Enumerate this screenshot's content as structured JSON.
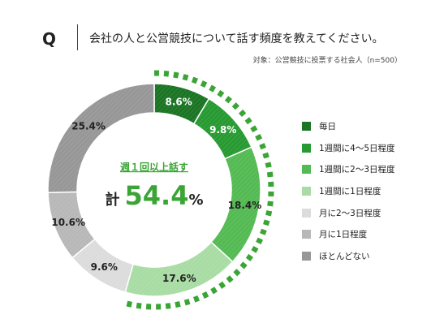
{
  "header": {
    "q_label": "Q",
    "question": "会社の人と公営競技について話す頻度を教えてください。",
    "subtitle": "対象：公営競技に投票する社会人（n=500）"
  },
  "center": {
    "label": "週１回以上話す",
    "prefix": "計",
    "value": "54.4",
    "unit": "%"
  },
  "colors": {
    "accent": "#3aa535",
    "fills": [
      "#1b7524",
      "#289a32",
      "#54ba53",
      "#a9dca4",
      "#dcdcdc",
      "#b8b8b8",
      "#979797"
    ],
    "label_text": [
      "#ffffff",
      "#ffffff",
      "#222222",
      "#222222",
      "#222222",
      "#222222",
      "#222222"
    ]
  },
  "chart_data": {
    "type": "pie",
    "donut": true,
    "categories": [
      "毎日",
      "1週間に4〜5日程度",
      "1週間に2〜3日程度",
      "1週間に1日程度",
      "月に2〜3日程度",
      "月に1日程度",
      "ほとんどない"
    ],
    "values": [
      8.6,
      9.8,
      18.4,
      17.6,
      9.6,
      10.6,
      25.4
    ],
    "labels": [
      "8.6%",
      "9.8%",
      "18.4%",
      "17.6%",
      "9.6%",
      "10.6%",
      "25.4%"
    ],
    "highlight_total": 54.4,
    "highlight_categories": [
      "毎日",
      "1週間に4〜5日程度",
      "1週間に2〜3日程度",
      "1週間に1日程度"
    ],
    "legend_position": "right"
  }
}
